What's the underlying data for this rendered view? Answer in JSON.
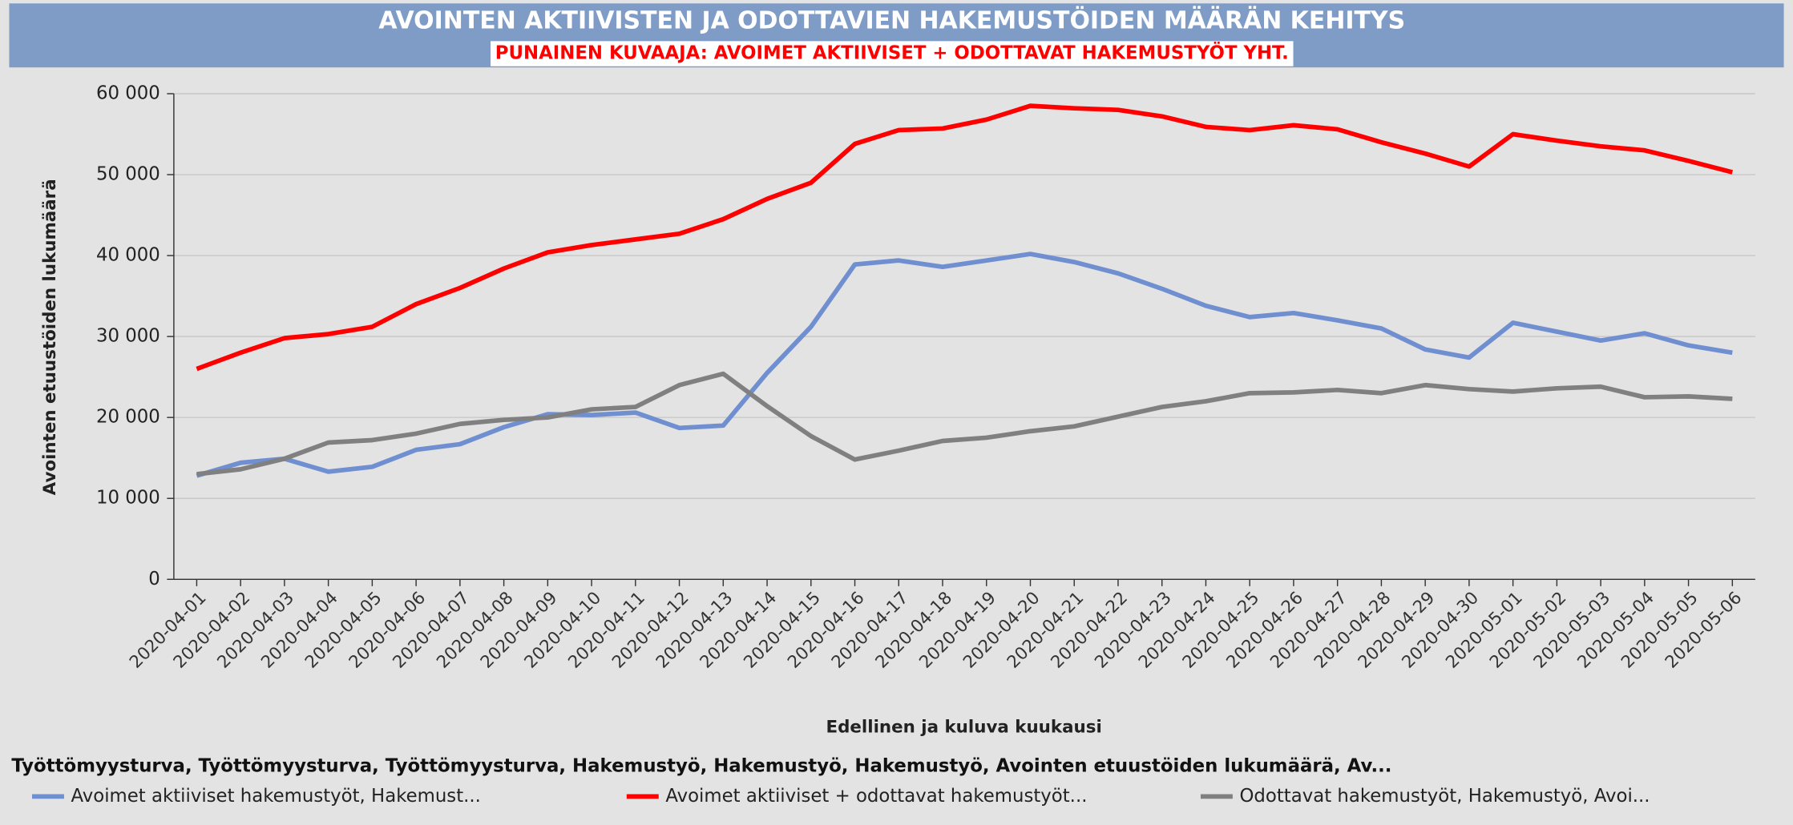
{
  "chart_data": {
    "type": "line",
    "title": "AVOINTEN AKTIIVISTEN  JA ODOTTAVIEN HAKEMUSTÖIDEN MÄÄRÄN KEHITYS",
    "subtitle": "PUNAINEN KUVAAJA: AVOIMET AKTIIVISET + ODOTTAVAT HAKEMUSTYÖT YHT.",
    "x_label": "Edellinen ja kuluva kuukausi",
    "y_label": "Avointen etuustöiden lukumäärä",
    "legend_title": "Työttömyysturva, Työttömyysturva, Työttömyysturva, Hakemustyö, Hakemustyö, Hakemustyö, Avointen etuustöiden lukumäärä, Av...",
    "categories": [
      "2020-04-01",
      "2020-04-02",
      "2020-04-03",
      "2020-04-04",
      "2020-04-05",
      "2020-04-06",
      "2020-04-07",
      "2020-04-08",
      "2020-04-09",
      "2020-04-10",
      "2020-04-11",
      "2020-04-12",
      "2020-04-13",
      "2020-04-14",
      "2020-04-15",
      "2020-04-16",
      "2020-04-17",
      "2020-04-18",
      "2020-04-19",
      "2020-04-20",
      "2020-04-21",
      "2020-04-22",
      "2020-04-23",
      "2020-04-24",
      "2020-04-25",
      "2020-04-26",
      "2020-04-27",
      "2020-04-28",
      "2020-04-29",
      "2020-04-30",
      "2020-05-01",
      "2020-05-02",
      "2020-05-03",
      "2020-05-04",
      "2020-05-05",
      "2020-05-06"
    ],
    "series": [
      {
        "name": "Avoimet aktiiviset hakemustyöt, Hakemust...",
        "color": "#6f8fd0",
        "values": [
          12800,
          14400,
          14900,
          13300,
          13900,
          16000,
          16700,
          18800,
          20400,
          20300,
          20600,
          18700,
          19000,
          25500,
          31200,
          38900,
          39400,
          38600,
          39400,
          40200,
          39200,
          37800,
          35900,
          33800,
          32400,
          32900,
          32000,
          31000,
          28400,
          27400,
          31700,
          30600,
          29500,
          30400,
          28900,
          28000
        ]
      },
      {
        "name": "Avoimet aktiiviset + odottavat hakemustyöt...",
        "color": "#ff0000",
        "values": [
          26000,
          28000,
          29800,
          30300,
          31200,
          34000,
          36000,
          38400,
          40400,
          41300,
          42000,
          42700,
          44500,
          47000,
          49000,
          53800,
          55500,
          55700,
          56800,
          58500,
          58200,
          58000,
          57200,
          55900,
          55500,
          56100,
          55600,
          54000,
          52600,
          51000,
          55000,
          54200,
          53500,
          53000,
          51700,
          50300
        ]
      },
      {
        "name": "Odottavat hakemustyöt, Hakemustyö, Avoi...",
        "color": "#808080",
        "values": [
          13000,
          13600,
          14900,
          16900,
          17200,
          18000,
          19200,
          19700,
          20000,
          21000,
          21300,
          24000,
          25400,
          21400,
          17700,
          14800,
          15900,
          17100,
          17500,
          18300,
          18900,
          20100,
          21300,
          22000,
          23000,
          23100,
          23400,
          23000,
          24000,
          23500,
          23200,
          23600,
          23800,
          22500,
          22600,
          22300
        ]
      }
    ],
    "ylim": [
      0,
      60000
    ],
    "yticks": [
      0,
      {
        "value": 10000,
        "label": "10 000"
      },
      {
        "value": 20000,
        "label": "20 000"
      },
      {
        "value": 30000,
        "label": "30 000"
      },
      {
        "value": 40000,
        "label": "40 000"
      },
      {
        "value": 50000,
        "label": "50 000"
      },
      {
        "value": 60000,
        "label": "60 000"
      }
    ],
    "grid": true,
    "legend_position": "bottom"
  }
}
